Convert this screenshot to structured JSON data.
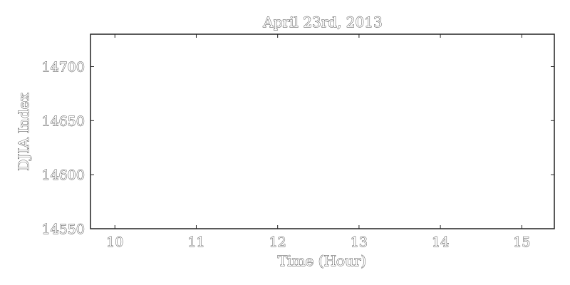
{
  "chart_data": {
    "type": "line",
    "title": "April 23rd, 2013",
    "xlabel": "Time (Hour)",
    "ylabel": "DJIA Index",
    "xlim": [
      9.7,
      15.4
    ],
    "ylim": [
      14550,
      14730
    ],
    "x_ticks": [
      10,
      11,
      12,
      13,
      14,
      15
    ],
    "x_tick_labels": [
      "10",
      "11",
      "12",
      "13",
      "14",
      "15"
    ],
    "y_ticks": [
      14550,
      14600,
      14650,
      14700
    ],
    "y_tick_labels": [
      "14550",
      "14600",
      "14650",
      "14700"
    ],
    "grid": false,
    "series": []
  }
}
